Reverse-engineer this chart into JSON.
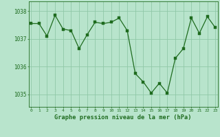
{
  "x": [
    0,
    1,
    2,
    3,
    4,
    5,
    6,
    7,
    8,
    9,
    10,
    11,
    12,
    13,
    14,
    15,
    16,
    17,
    18,
    19,
    20,
    21,
    22,
    23
  ],
  "y": [
    1037.55,
    1037.55,
    1037.1,
    1037.85,
    1037.35,
    1037.3,
    1036.65,
    1037.15,
    1037.6,
    1037.55,
    1037.6,
    1037.75,
    1037.3,
    1035.75,
    1035.45,
    1035.05,
    1035.4,
    1035.05,
    1036.3,
    1036.65,
    1037.75,
    1037.2,
    1037.8,
    1037.4
  ],
  "line_color": "#1e6b1e",
  "marker_color": "#1e6b1e",
  "bg_color": "#b8e4cc",
  "grid_color": "#90c8a8",
  "axis_color": "#1e6b1e",
  "xlabel": "Graphe pression niveau de la mer (hPa)",
  "ylim": [
    1034.55,
    1038.35
  ],
  "yticks": [
    1035,
    1036,
    1037,
    1038
  ],
  "xticks": [
    0,
    1,
    2,
    3,
    4,
    5,
    6,
    7,
    8,
    9,
    10,
    11,
    12,
    13,
    14,
    15,
    16,
    17,
    18,
    19,
    20,
    21,
    22,
    23
  ]
}
